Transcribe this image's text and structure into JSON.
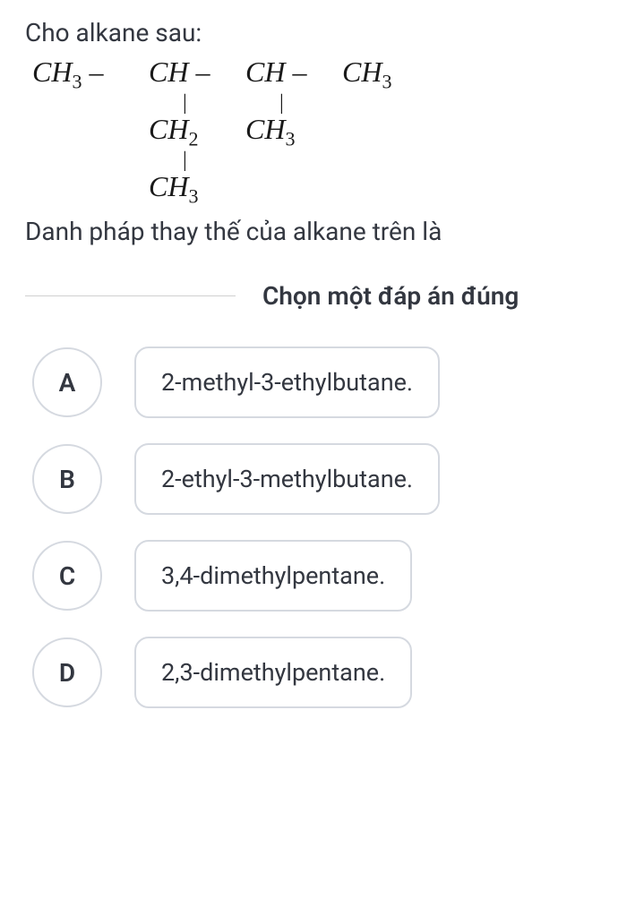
{
  "question": {
    "intro": "Cho alkane sau:",
    "text": "Danh pháp thay thế của alkane trên là"
  },
  "formula": {
    "row1": {
      "c1": "CH",
      "c1sub": "3",
      "c2": "CH",
      "c3": "CH",
      "c4": "CH",
      "c4sub": "3"
    },
    "row2": {
      "c2": "CH",
      "c2sub": "2",
      "c3": "CH",
      "c3sub": "3"
    },
    "row3": {
      "c2": "CH",
      "c2sub": "3"
    }
  },
  "prompt": "Chọn một đáp án đúng",
  "options": [
    {
      "letter": "A",
      "text": "2-methyl-3-ethylbutane."
    },
    {
      "letter": "B",
      "text": "2-ethyl-3-methylbutane."
    },
    {
      "letter": "C",
      "text": "3,4-dimethylpentane."
    },
    {
      "letter": "D",
      "text": "2,3-dimethylpentane."
    }
  ],
  "colors": {
    "text": "#333740",
    "border": "#d5d9e0",
    "line": "#d0d0d0",
    "background": "#ffffff"
  },
  "fontsizes": {
    "body": 28,
    "formula": 32,
    "option": 27
  }
}
